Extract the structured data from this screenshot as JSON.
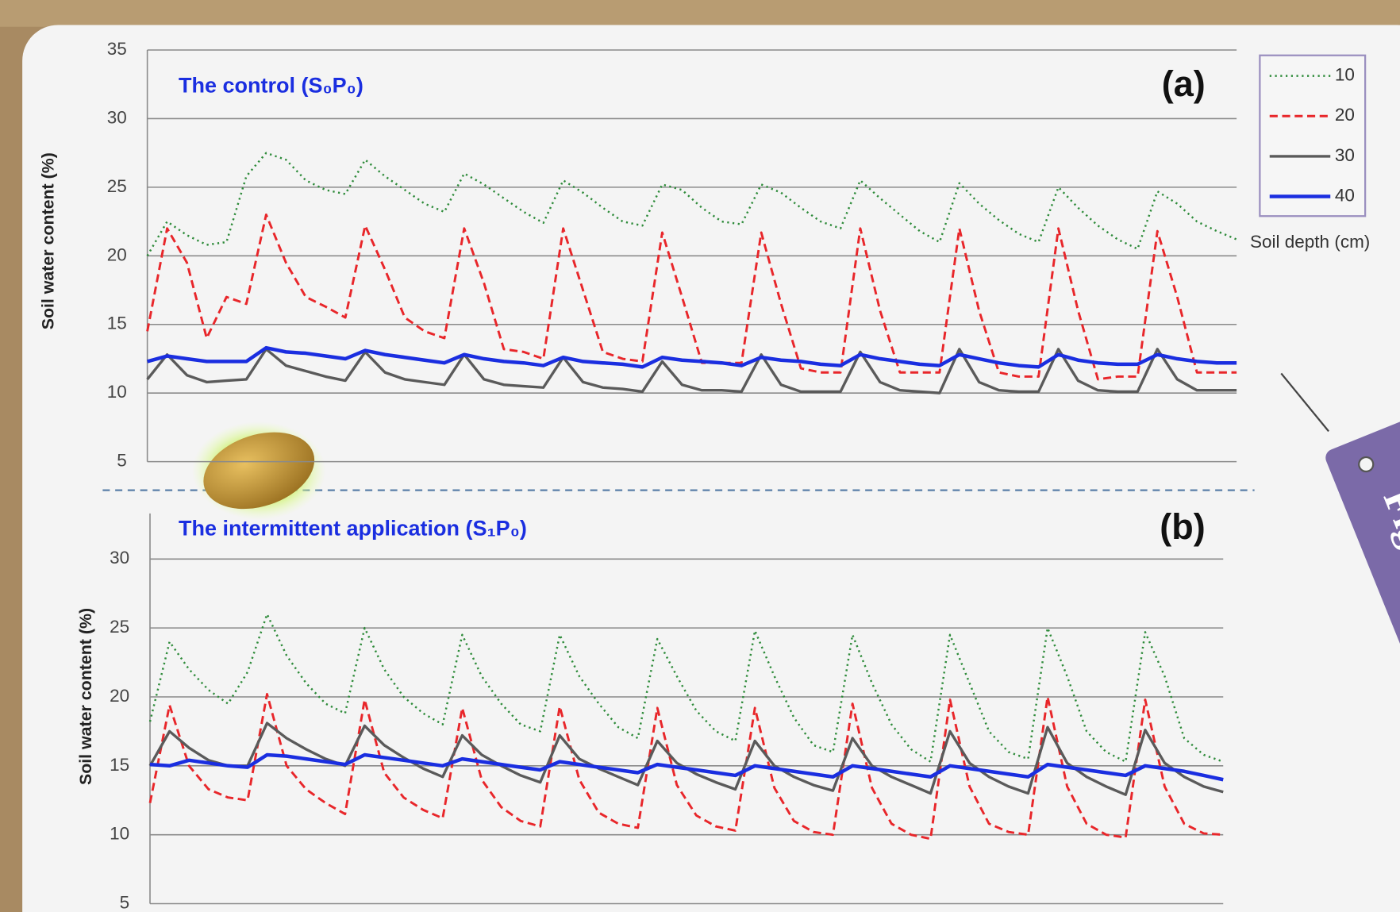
{
  "chart_data": [
    {
      "type": "line",
      "title": "The control (S₀P₀)",
      "panel_label": "(a)",
      "y_label": "Soil water content (%)",
      "ylim": [
        5,
        35
      ],
      "yticks": [
        5,
        10,
        15,
        20,
        25,
        30,
        35
      ],
      "grid": true,
      "legend": "right",
      "legend_title": "Soil depth (cm)",
      "series": [
        {
          "name": "10",
          "color": "#2e8b3a",
          "style": "dotted",
          "values": [
            20,
            22.5,
            21.5,
            20.8,
            21,
            25.8,
            27.5,
            27,
            25.5,
            24.8,
            24.5,
            27,
            25.8,
            24.8,
            23.8,
            23.2,
            26,
            25.2,
            24.2,
            23.2,
            22.4,
            25.5,
            24.6,
            23.5,
            22.5,
            22.2,
            25.2,
            24.8,
            23.5,
            22.5,
            22.3,
            25.2,
            24.6,
            23.5,
            22.5,
            22,
            25.5,
            24.2,
            23,
            21.8,
            21,
            25.3,
            23.8,
            22.6,
            21.6,
            21,
            25,
            23.5,
            22.2,
            21.2,
            20.5,
            24.7,
            23.8,
            22.5,
            21.8,
            21.2
          ]
        },
        {
          "name": "20",
          "color": "#e8262a",
          "style": "dashed",
          "values": [
            14.5,
            22,
            19.5,
            14,
            17,
            16.5,
            23,
            19.5,
            17,
            16.3,
            15.5,
            22.2,
            19,
            15.5,
            14.5,
            14,
            22,
            18,
            13.2,
            13,
            12.5,
            22,
            17.5,
            13,
            12.5,
            12.3,
            21.7,
            17,
            12.2,
            12.2,
            12.2,
            21.7,
            16.5,
            11.8,
            11.5,
            11.5,
            22,
            16,
            11.5,
            11.5,
            11.5,
            22,
            16,
            11.5,
            11.2,
            11.2,
            22,
            16,
            11,
            11.2,
            11.2,
            21.8,
            17,
            11.5,
            11.5,
            11.5
          ]
        },
        {
          "name": "30",
          "color": "#5a5a5a",
          "style": "solid",
          "values": [
            11,
            12.8,
            11.3,
            10.8,
            10.9,
            11,
            13.2,
            12,
            11.6,
            11.2,
            10.9,
            13,
            11.5,
            11,
            10.8,
            10.6,
            12.8,
            11,
            10.6,
            10.5,
            10.4,
            12.6,
            10.8,
            10.4,
            10.3,
            10.1,
            12.3,
            10.6,
            10.2,
            10.2,
            10.1,
            12.8,
            10.6,
            10.1,
            10.1,
            10.1,
            13,
            10.8,
            10.2,
            10.1,
            10,
            13.2,
            10.8,
            10.2,
            10.1,
            10.1,
            13.2,
            10.9,
            10.2,
            10.1,
            10.1,
            13.2,
            11,
            10.2,
            10.2,
            10.2
          ]
        },
        {
          "name": "40",
          "color": "#1a2ee0",
          "style": "thick",
          "values": [
            12.3,
            12.7,
            12.5,
            12.3,
            12.3,
            12.3,
            13.3,
            13,
            12.9,
            12.7,
            12.5,
            13.1,
            12.8,
            12.6,
            12.4,
            12.2,
            12.8,
            12.5,
            12.3,
            12.2,
            12,
            12.6,
            12.3,
            12.2,
            12.1,
            11.9,
            12.6,
            12.4,
            12.3,
            12.2,
            12,
            12.6,
            12.4,
            12.3,
            12.1,
            12,
            12.8,
            12.5,
            12.3,
            12.1,
            12,
            12.8,
            12.5,
            12.2,
            12,
            11.9,
            12.8,
            12.4,
            12.2,
            12.1,
            12.1,
            12.8,
            12.5,
            12.3,
            12.2,
            12.2
          ]
        }
      ]
    },
    {
      "type": "line",
      "title": "The intermittent application (S₁P₀)",
      "panel_label": "(b)",
      "y_label": "Soil water content (%)",
      "ylim": [
        5,
        33.5
      ],
      "yticks": [
        5,
        10,
        15,
        20,
        25,
        30
      ],
      "grid": true,
      "series": [
        {
          "color": "#2e8b3a",
          "style": "dotted",
          "values": [
            18.2,
            24,
            22,
            20.5,
            19.5,
            21.8,
            26,
            23,
            21,
            19.5,
            18.8,
            25,
            22,
            20,
            18.8,
            18,
            24.5,
            21.5,
            19.5,
            18,
            17.5,
            24.5,
            21.5,
            19.5,
            17.8,
            17,
            24.2,
            21.5,
            19,
            17.5,
            16.8,
            24.8,
            21.5,
            18.5,
            16.5,
            16,
            24.5,
            21,
            18,
            16.2,
            15.3,
            24.5,
            21,
            17.5,
            16,
            15.5,
            25,
            21.5,
            17.5,
            16,
            15.3,
            24.7,
            21.5,
            17,
            15.8,
            15.3
          ]
        },
        {
          "color": "#e8262a",
          "style": "dashed",
          "values": [
            12.3,
            19.4,
            15,
            13.3,
            12.7,
            12.5,
            20.2,
            15,
            13.3,
            12.3,
            11.5,
            19.8,
            14.5,
            12.7,
            11.8,
            11.2,
            19.2,
            14,
            12,
            11,
            10.6,
            19.3,
            14,
            11.6,
            10.8,
            10.5,
            19.2,
            13.6,
            11.4,
            10.6,
            10.3,
            19.2,
            13.4,
            11,
            10.2,
            10,
            19.5,
            13.4,
            10.8,
            10,
            9.7,
            19.8,
            13.5,
            10.8,
            10.2,
            10,
            20,
            13.5,
            10.8,
            10,
            9.8,
            19.8,
            13.5,
            10.8,
            10.1,
            10
          ]
        },
        {
          "color": "#5a5a5a",
          "style": "solid",
          "values": [
            15,
            17.5,
            16.3,
            15.4,
            15,
            15,
            18.1,
            17,
            16.2,
            15.5,
            15,
            17.9,
            16.5,
            15.6,
            14.8,
            14.2,
            17.2,
            15.8,
            15,
            14.3,
            13.8,
            17.2,
            15.5,
            14.8,
            14.2,
            13.6,
            16.8,
            15.2,
            14.4,
            13.8,
            13.3,
            16.8,
            15,
            14.2,
            13.6,
            13.2,
            17,
            15,
            14.2,
            13.6,
            13,
            17.5,
            15.2,
            14.2,
            13.5,
            13,
            17.8,
            15.2,
            14.2,
            13.5,
            12.9,
            17.6,
            15.2,
            14.2,
            13.5,
            13.1
          ]
        },
        {
          "color": "#1a2ee0",
          "style": "thick",
          "values": [
            15.1,
            15,
            15.4,
            15.2,
            15,
            14.9,
            15.8,
            15.7,
            15.5,
            15.3,
            15.1,
            15.8,
            15.6,
            15.4,
            15.2,
            15,
            15.5,
            15.3,
            15.1,
            14.9,
            14.7,
            15.3,
            15.1,
            14.9,
            14.7,
            14.5,
            15.1,
            14.9,
            14.7,
            14.5,
            14.3,
            15,
            14.8,
            14.6,
            14.4,
            14.2,
            15,
            14.8,
            14.6,
            14.4,
            14.2,
            15,
            14.8,
            14.6,
            14.4,
            14.2,
            15.1,
            14.9,
            14.7,
            14.5,
            14.3,
            15,
            14.8,
            14.6,
            14.3,
            14
          ]
        }
      ]
    }
  ],
  "tag_label": "Figure"
}
